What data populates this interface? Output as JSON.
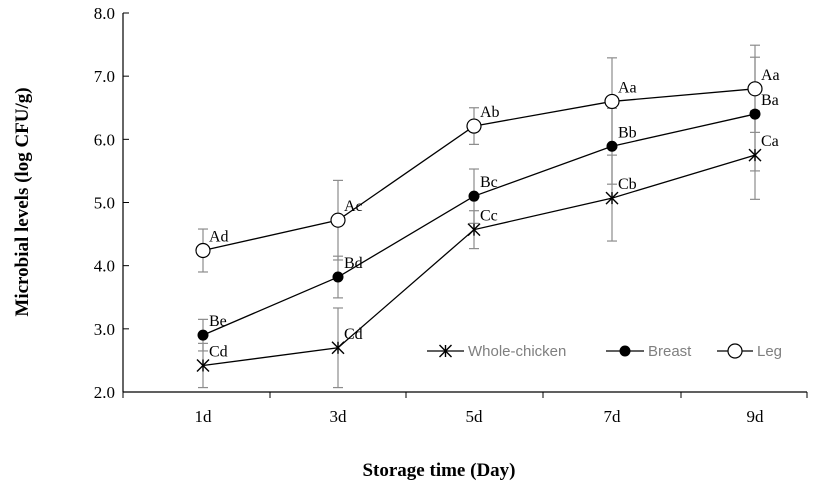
{
  "chart_data": {
    "type": "line",
    "title": "",
    "xlabel": "Storage time (Day)",
    "ylabel": "Microbial levels  (log CFU/g)",
    "categories": [
      "1d",
      "3d",
      "5d",
      "7d",
      "9d"
    ],
    "ylim": [
      2.0,
      8.0
    ],
    "yticks": [
      "2.0",
      "3.0",
      "4.0",
      "5.0",
      "6.0",
      "7.0",
      "8.0"
    ],
    "grid": false,
    "legend_position": "bottom-right",
    "series": [
      {
        "name": "Whole-chicken",
        "marker": "star",
        "values": [
          2.42,
          2.7,
          4.57,
          5.07,
          5.75
        ],
        "errors": [
          0.35,
          0.63,
          0.3,
          0.68,
          0.7
        ],
        "letters": [
          "Cd",
          "Cd",
          "Cc",
          "Cb",
          "Ca"
        ]
      },
      {
        "name": "Breast",
        "marker": "filled-circle",
        "values": [
          2.9,
          3.82,
          5.1,
          5.89,
          6.4
        ],
        "errors": [
          0.25,
          0.33,
          0.43,
          0.6,
          0.9
        ],
        "letters": [
          "Be",
          "Bd",
          "Bc",
          "Bb",
          "Ba"
        ]
      },
      {
        "name": "Leg",
        "marker": "open-circle",
        "values": [
          4.24,
          4.72,
          6.21,
          6.6,
          6.8
        ],
        "errors": [
          0.34,
          0.63,
          0.29,
          0.69,
          0.69
        ],
        "letters": [
          "Ad",
          "Ac",
          "Ab",
          "Aa",
          "Aa"
        ]
      }
    ]
  }
}
